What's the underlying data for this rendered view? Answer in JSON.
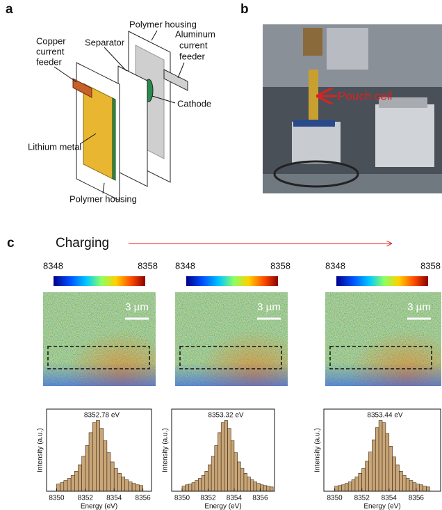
{
  "panel_a": {
    "label": "a",
    "polymer_housing_top": "Polymer housing",
    "separator": "Separator",
    "copper_current_feeder": [
      "Copper",
      "current",
      "feeder"
    ],
    "aluminum_current_feeder": [
      "Aluminum",
      "current",
      "feeder"
    ],
    "cathode": "Cathode",
    "lithium_metal": "Lithium metal",
    "polymer_housing_bottom": "Polymer housing"
  },
  "panel_b": {
    "label": "b",
    "annotation": "Pouch cell"
  },
  "panel_c": {
    "label": "c",
    "title": "Charging",
    "maps": [
      {
        "colorbar_min": 8348,
        "colorbar_max": 8358,
        "scale_bar": "3 µm"
      },
      {
        "colorbar_min": 8348,
        "colorbar_max": 8358,
        "scale_bar": "3 µm"
      },
      {
        "colorbar_min": 8348,
        "colorbar_max": 8358,
        "scale_bar": "3 µm"
      }
    ]
  },
  "chart_data": [
    {
      "type": "histogram",
      "annotation": "8352.78 eV",
      "xlabel": "Energy (eV)",
      "ylabel": "Intensity (a.u.)",
      "color": "#c9a678",
      "bins": [
        8350,
        8350.25,
        8350.5,
        8350.75,
        8351,
        8351.25,
        8351.5,
        8351.75,
        8352,
        8352.25,
        8352.5,
        8352.75,
        8353,
        8353.25,
        8353.5,
        8353.75,
        8354,
        8354.25,
        8354.5,
        8354.75,
        8355,
        8355.25,
        8355.5,
        8355.75,
        8356
      ],
      "counts": [
        10,
        12,
        15,
        18,
        22,
        28,
        37,
        49,
        64,
        82,
        96,
        99,
        88,
        71,
        54,
        41,
        32,
        25,
        20,
        16,
        13,
        11,
        9,
        8
      ],
      "xlim": [
        8349.3,
        8356.6
      ],
      "xticks": [
        8350,
        8352,
        8354,
        8356
      ],
      "ylim": [
        0,
        115
      ]
    },
    {
      "type": "histogram",
      "annotation": "8353.32 eV",
      "xlabel": "Energy (eV)",
      "ylabel": "Intensity (a.u.)",
      "color": "#c9a678",
      "bins": [
        8350,
        8350.25,
        8350.5,
        8350.75,
        8351,
        8351.25,
        8351.5,
        8351.75,
        8352,
        8352.25,
        8352.5,
        8352.75,
        8353,
        8353.25,
        8353.5,
        8353.75,
        8354,
        8354.25,
        8354.5,
        8354.75,
        8355,
        8355.25,
        8355.5,
        8355.75,
        8356,
        8356.25,
        8356.5,
        8356.75,
        8357
      ],
      "counts": [
        7,
        9,
        10,
        12,
        15,
        18,
        22,
        28,
        37,
        49,
        64,
        82,
        96,
        99,
        88,
        71,
        54,
        41,
        32,
        25,
        20,
        16,
        13,
        11,
        9,
        8,
        7,
        6
      ],
      "xlim": [
        8349.2,
        8357.1
      ],
      "xticks": [
        8350,
        8352,
        8354,
        8356
      ],
      "ylim": [
        0,
        115
      ]
    },
    {
      "type": "histogram",
      "annotation": "8353.44 eV",
      "xlabel": "Energy (eV)",
      "ylabel": "Intensity (a.u.)",
      "color": "#c9a678",
      "bins": [
        8350,
        8350.25,
        8350.5,
        8350.75,
        8351,
        8351.25,
        8351.5,
        8351.75,
        8352,
        8352.25,
        8352.5,
        8352.75,
        8353,
        8353.25,
        8353.5,
        8353.75,
        8354,
        8354.25,
        8354.5,
        8354.75,
        8355,
        8355.25,
        8355.5,
        8355.75,
        8356,
        8356.25,
        8356.5,
        8356.75,
        8357
      ],
      "counts": [
        7,
        8,
        9,
        11,
        13,
        16,
        20,
        25,
        32,
        42,
        55,
        72,
        89,
        99,
        96,
        81,
        63,
        48,
        37,
        28,
        22,
        18,
        15,
        12,
        10,
        9,
        7,
        6
      ],
      "xlim": [
        8349.2,
        8357.8
      ],
      "xticks": [
        8350,
        8352,
        8354,
        8356
      ],
      "ylim": [
        0,
        115
      ]
    }
  ]
}
